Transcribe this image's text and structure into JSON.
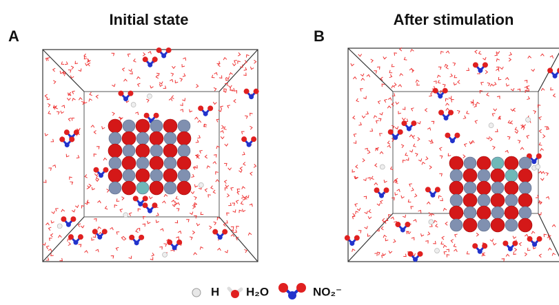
{
  "panels": [
    {
      "label": "A",
      "title": "Initial state"
    },
    {
      "label": "B",
      "title": "After stimulation"
    }
  ],
  "legend": [
    "H",
    "H₂O",
    "NO₂⁻"
  ]
}
